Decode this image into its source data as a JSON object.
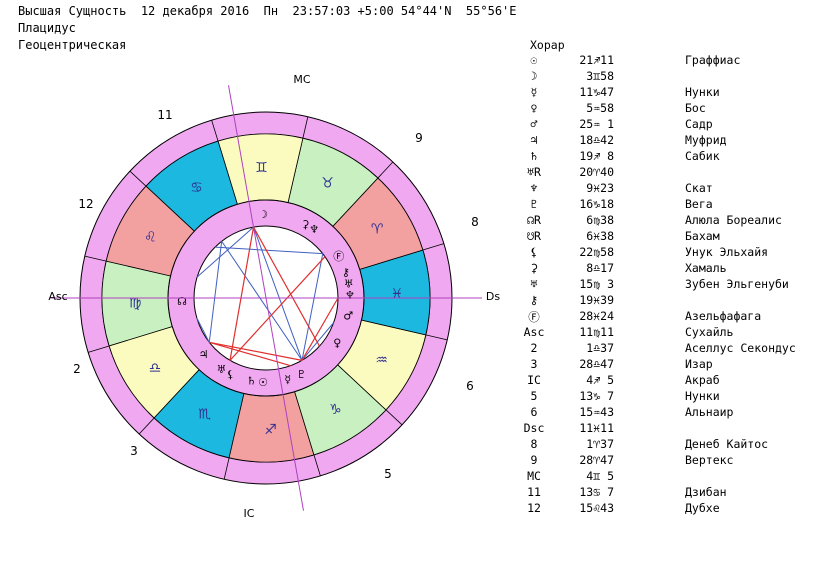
{
  "header": {
    "line1": "Высшая Сущность  12 декабря 2016  Пн  23:57:03 +5:00 54°44'N  55°56'E",
    "line2": "Плацидус",
    "line3": "Геоцентрическая"
  },
  "table_title": "Хорар",
  "rows": [
    {
      "name": "☉",
      "pos": "21♐11",
      "star": "Граффиас"
    },
    {
      "name": "☽",
      "pos": "3♊58",
      "star": ""
    },
    {
      "name": "☿",
      "pos": "11♑47",
      "star": "Нунки"
    },
    {
      "name": "♀",
      "pos": "5♒58",
      "star": "Бос"
    },
    {
      "name": "♂",
      "pos": "25♒ 1",
      "star": "Садр"
    },
    {
      "name": "♃",
      "pos": "18♎42",
      "star": "Муфрид"
    },
    {
      "name": "♄",
      "pos": "19♐ 8",
      "star": "Сабик"
    },
    {
      "name": "♅R",
      "pos": "20♈40",
      "star": ""
    },
    {
      "name": "♆",
      "pos": "9♓23",
      "star": "Скат"
    },
    {
      "name": "♇",
      "pos": "16♑18",
      "star": "Вега"
    },
    {
      "name": "☊R",
      "pos": "6♍38",
      "star": "Алюла Бореалис"
    },
    {
      "name": "☋R",
      "pos": "6♓38",
      "star": "Бахам"
    },
    {
      "name": "⚸",
      "pos": "22♍58",
      "star": "Унук Эльхайя"
    },
    {
      "name": "⚳",
      "pos": "8♎17",
      "star": "Хамаль"
    },
    {
      "name": "♅",
      "pos": "15♍ 3",
      "star": "Зубен Эльгенуби"
    },
    {
      "name": "⚷",
      "pos": "19♓39",
      "star": ""
    },
    {
      "name": "Ⓕ",
      "pos": "28♓24",
      "star": "Азельфафага"
    },
    {
      "name": "Asc",
      "pos": "11♍11",
      "star": "Сухайль"
    },
    {
      "name": "2",
      "pos": "1♎37",
      "star": "Аселлус Секондус"
    },
    {
      "name": "3",
      "pos": "28♎47",
      "star": "Изар"
    },
    {
      "name": "IC",
      "pos": "4♐ 5",
      "star": "Акраб"
    },
    {
      "name": "5",
      "pos": "13♑ 7",
      "star": "Нунки"
    },
    {
      "name": "6",
      "pos": "15♒43",
      "star": "Альнаир"
    },
    {
      "name": "Dsc",
      "pos": "11♓11",
      "star": ""
    },
    {
      "name": "8",
      "pos": "1♈37",
      "star": "Денеб Кайтос"
    },
    {
      "name": "9",
      "pos": "28♈47",
      "star": "Вертекс"
    },
    {
      "name": "MC",
      "pos": "4♊ 5",
      "star": ""
    },
    {
      "name": "11",
      "pos": "13♋ 7",
      "star": "Дзибан"
    },
    {
      "name": "12",
      "pos": "15♌43",
      "star": "Дубхе"
    }
  ],
  "wheel": {
    "axis_labels": {
      "mc": "MC",
      "ic": "IC",
      "asc": "Asc",
      "dsc": "Dsc"
    },
    "house_numbers": [
      "2",
      "3",
      "5",
      "6",
      "8",
      "9",
      "11",
      "12"
    ],
    "signs": [
      {
        "glyph": "♍",
        "color": "#c8f0c0"
      },
      {
        "glyph": "♎",
        "color": "#fbfbc0"
      },
      {
        "glyph": "♏",
        "color": "#1cb8e0"
      },
      {
        "glyph": "♐",
        "color": "#f2a0a0"
      },
      {
        "glyph": "♑",
        "color": "#c8f0c0"
      },
      {
        "glyph": "♒",
        "color": "#fbfbc0"
      },
      {
        "glyph": "♓",
        "color": "#1cb8e0"
      },
      {
        "glyph": "♈",
        "color": "#f2a0a0"
      },
      {
        "glyph": "♉",
        "color": "#c8f0c0"
      },
      {
        "glyph": "♊",
        "color": "#fbfbc0"
      },
      {
        "glyph": "♋",
        "color": "#1cb8e0"
      },
      {
        "glyph": "♌",
        "color": "#f2a0a0"
      }
    ],
    "planets": [
      {
        "glyph": "☽",
        "color": "#000000"
      },
      {
        "glyph": "⚳",
        "color": "#000000"
      },
      {
        "glyph": "♆",
        "color": "#000000"
      },
      {
        "glyph": "Ⓕ",
        "color": "#000000"
      },
      {
        "glyph": "⚷",
        "color": "#000000"
      },
      {
        "glyph": "♅",
        "color": "#000000"
      },
      {
        "glyph": "♆",
        "color": "#000000"
      },
      {
        "glyph": "♂",
        "color": "#000000"
      },
      {
        "glyph": "♀",
        "color": "#000000"
      },
      {
        "glyph": "♇",
        "color": "#000000"
      },
      {
        "glyph": "☿",
        "color": "#000000"
      },
      {
        "glyph": "☉",
        "color": "#000000"
      },
      {
        "glyph": "♄",
        "color": "#000000"
      },
      {
        "glyph": "⚸",
        "color": "#000000"
      },
      {
        "glyph": "♅",
        "color": "#000000"
      },
      {
        "glyph": "♃",
        "color": "#000000"
      },
      {
        "glyph": "☊",
        "color": "#000000"
      }
    ],
    "ring_color": "#f0a8f0",
    "axis_color": "#b040c0",
    "aspect_blue": "#4060c0",
    "aspect_red": "#e03030"
  }
}
